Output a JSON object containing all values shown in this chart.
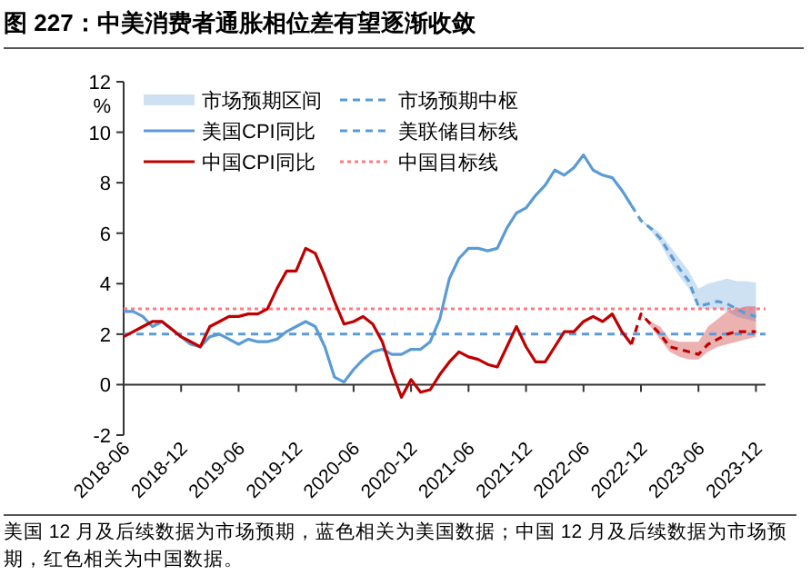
{
  "chart_data": {
    "type": "line",
    "title": "图 227：中美消费者通胀相位差有望逐渐收敛",
    "ylabel": "%",
    "annotations": [
      "市场预期区间",
      "美国 12 月及后续数据为市场预期，蓝色相关为美国数据；中国 12 月及后续数据为市场预期，红色相关为中国数据。"
    ],
    "xlim": [
      "2018-06",
      "2024-01"
    ],
    "xticks": [
      "2018-06",
      "2018-12",
      "2019-06",
      "2019-12",
      "2020-06",
      "2020-12",
      "2021-06",
      "2021-12",
      "2022-06",
      "2022-12",
      "2023-06",
      "2023-12"
    ],
    "ylim": [
      -2,
      12
    ],
    "yticks": [
      -2,
      0,
      2,
      4,
      6,
      8,
      10,
      12
    ],
    "grid": false,
    "legend": "top left",
    "line_style": "solid",
    "marker": "none",
    "series": [
      {
        "name": "美国CPI同比",
        "color": "#5b9bd5",
        "x": [
          "2018-06",
          "2018-07",
          "2018-08",
          "2018-09",
          "2018-10",
          "2018-11",
          "2018-12",
          "2019-01",
          "2019-02",
          "2019-03",
          "2019-04",
          "2019-05",
          "2019-06",
          "2019-07",
          "2019-08",
          "2019-09",
          "2019-10",
          "2019-11",
          "2019-12",
          "2020-01",
          "2020-02",
          "2020-03",
          "2020-04",
          "2020-05",
          "2020-06",
          "2020-07",
          "2020-08",
          "2020-09",
          "2020-10",
          "2020-11",
          "2020-12",
          "2021-01",
          "2021-02",
          "2021-03",
          "2021-04",
          "2021-05",
          "2021-06",
          "2021-07",
          "2021-08",
          "2021-09",
          "2021-10",
          "2021-11",
          "2021-12",
          "2022-01",
          "2022-02",
          "2022-03",
          "2022-04",
          "2022-05",
          "2022-06",
          "2022-07",
          "2022-08",
          "2022-09",
          "2022-10",
          "2022-11"
        ],
        "values": [
          2.9,
          2.9,
          2.7,
          2.3,
          2.5,
          2.2,
          1.9,
          1.6,
          1.5,
          1.9,
          2.0,
          1.8,
          1.6,
          1.8,
          1.7,
          1.7,
          1.8,
          2.1,
          2.3,
          2.5,
          2.3,
          1.5,
          0.3,
          0.1,
          0.6,
          1.0,
          1.3,
          1.4,
          1.2,
          1.2,
          1.4,
          1.4,
          1.7,
          2.6,
          4.2,
          5.0,
          5.4,
          5.4,
          5.3,
          5.4,
          6.2,
          6.8,
          7.0,
          7.5,
          7.9,
          8.5,
          8.3,
          8.6,
          9.1,
          8.5,
          8.3,
          8.2,
          7.7,
          7.1
        ]
      },
      {
        "name": "中国CPI同比",
        "color": "#c00000",
        "x": [
          "2018-06",
          "2018-07",
          "2018-08",
          "2018-09",
          "2018-10",
          "2018-11",
          "2018-12",
          "2019-01",
          "2019-02",
          "2019-03",
          "2019-04",
          "2019-05",
          "2019-06",
          "2019-07",
          "2019-08",
          "2019-09",
          "2019-10",
          "2019-11",
          "2019-12",
          "2020-01",
          "2020-02",
          "2020-03",
          "2020-04",
          "2020-05",
          "2020-06",
          "2020-07",
          "2020-08",
          "2020-09",
          "2020-10",
          "2020-11",
          "2020-12",
          "2021-01",
          "2021-02",
          "2021-03",
          "2021-04",
          "2021-05",
          "2021-06",
          "2021-07",
          "2021-08",
          "2021-09",
          "2021-10",
          "2021-11",
          "2021-12",
          "2022-01",
          "2022-02",
          "2022-03",
          "2022-04",
          "2022-05",
          "2022-06",
          "2022-07",
          "2022-08",
          "2022-09",
          "2022-10",
          "2022-11"
        ],
        "values": [
          1.9,
          2.1,
          2.3,
          2.5,
          2.5,
          2.2,
          1.9,
          1.7,
          1.5,
          2.3,
          2.5,
          2.7,
          2.7,
          2.8,
          2.8,
          3.0,
          3.8,
          4.5,
          4.5,
          5.4,
          5.2,
          4.3,
          3.3,
          2.4,
          2.5,
          2.7,
          2.4,
          1.7,
          0.5,
          -0.5,
          0.2,
          -0.3,
          -0.2,
          0.4,
          0.9,
          1.3,
          1.1,
          1.0,
          0.8,
          0.7,
          1.5,
          2.3,
          1.5,
          0.9,
          0.9,
          1.5,
          2.1,
          2.1,
          2.5,
          2.7,
          2.5,
          2.8,
          2.1,
          1.6
        ]
      },
      {
        "name": "市场预期中枢",
        "color": "#5b9bd5",
        "line_style": "dashed",
        "x": [
          "2022-11",
          "2022-12",
          "2023-01",
          "2023-02",
          "2023-03",
          "2023-04",
          "2023-05",
          "2023-06",
          "2023-07",
          "2023-08",
          "2023-09",
          "2023-10",
          "2023-11",
          "2023-12"
        ],
        "values": [
          7.1,
          6.5,
          6.2,
          5.8,
          5.2,
          4.6,
          4.1,
          3.1,
          3.2,
          3.3,
          3.2,
          3.0,
          2.8,
          2.7
        ],
        "lower": [
          7.1,
          6.5,
          6.1,
          5.6,
          4.9,
          4.3,
          3.8,
          3.0,
          3.0,
          3.0,
          2.9,
          2.7,
          2.6,
          2.5
        ],
        "upper": [
          7.1,
          6.5,
          6.3,
          6.0,
          5.5,
          5.0,
          4.5,
          3.8,
          4.0,
          4.1,
          4.2,
          4.1,
          4.1,
          4.05
        ]
      },
      {
        "color": "#c00000",
        "line_style": "dashed",
        "x": [
          "2022-11",
          "2022-12",
          "2023-01",
          "2023-02",
          "2023-03",
          "2023-04",
          "2023-05",
          "2023-06",
          "2023-07",
          "2023-08",
          "2023-09",
          "2023-10",
          "2023-11",
          "2023-12"
        ],
        "values": [
          1.6,
          2.8,
          2.4,
          2.0,
          1.5,
          1.4,
          1.3,
          1.2,
          1.6,
          1.8,
          2.0,
          2.1,
          2.1,
          2.1
        ],
        "lower": [
          1.6,
          2.8,
          2.3,
          1.8,
          1.3,
          1.1,
          1.0,
          1.0,
          1.3,
          1.5,
          1.6,
          1.7,
          1.8,
          1.9
        ],
        "upper": [
          1.6,
          2.8,
          2.5,
          2.3,
          1.8,
          1.7,
          1.7,
          1.7,
          2.3,
          2.6,
          2.9,
          3.0,
          3.1,
          3.1
        ]
      }
    ],
    "ref_lines": [
      {
        "axis": "y",
        "value": 2,
        "label": "美联储目标线",
        "color": "#5b9bd5",
        "line_style": "dashed"
      },
      {
        "axis": "y",
        "value": 3,
        "label": "中国目标线",
        "color": "#ff7c80",
        "line_style": "dotted"
      }
    ]
  }
}
